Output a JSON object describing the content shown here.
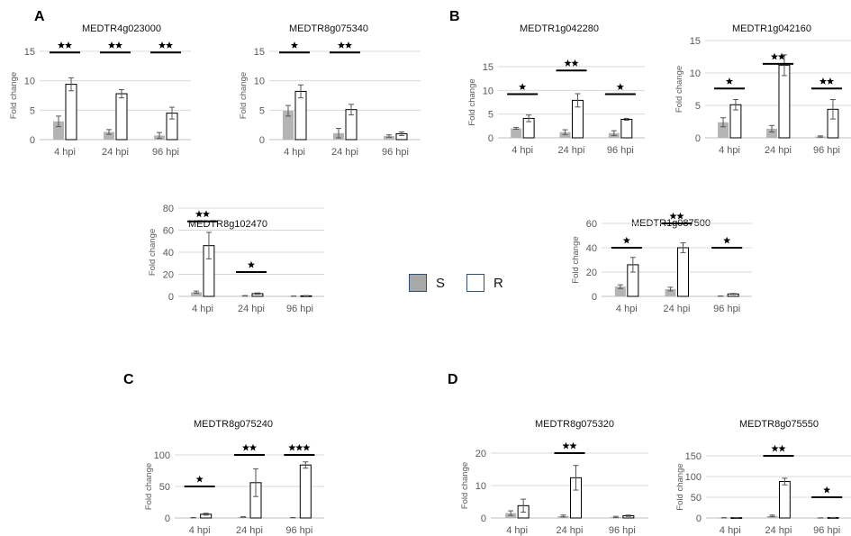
{
  "panels": {
    "a": "A",
    "b": "B",
    "c": "C",
    "d": "D"
  },
  "legend": {
    "s": "S",
    "r": "R"
  },
  "colors": {
    "s_bar": "#b4b4b4",
    "r_bar": "#ffffff",
    "grid": "#d9d9d9",
    "axis_text": "#595959",
    "sig": "#000000"
  },
  "chart_data": [
    {
      "id": "A1",
      "type": "bar",
      "title": "MEDTR4g023000",
      "ylabel": "Fold change",
      "ylim": [
        0,
        15
      ],
      "yticks": [
        0,
        5,
        10,
        15
      ],
      "categories": [
        "4 hpi",
        "24 hpi",
        "96 hpi"
      ],
      "series": [
        {
          "name": "S",
          "values": [
            3.1,
            1.3,
            0.7
          ],
          "errors": [
            0.9,
            0.4,
            0.5
          ]
        },
        {
          "name": "R",
          "values": [
            9.4,
            7.8,
            4.5
          ],
          "errors": [
            1.1,
            0.7,
            1.0
          ]
        }
      ],
      "significance": [
        "★★",
        "★★",
        "★★"
      ],
      "sig_levels": [
        14.8,
        14.8,
        14.8
      ]
    },
    {
      "id": "A2",
      "type": "bar",
      "title": "MEDTR8g075340",
      "ylabel": "Fold change",
      "ylim": [
        0,
        15
      ],
      "yticks": [
        0,
        5,
        10,
        15
      ],
      "categories": [
        "4 hpi",
        "24 hpi",
        "96 hpi"
      ],
      "series": [
        {
          "name": "S",
          "values": [
            4.9,
            1.1,
            0.6
          ],
          "errors": [
            0.9,
            0.8,
            0.2
          ]
        },
        {
          "name": "R",
          "values": [
            8.2,
            5.1,
            1.0
          ],
          "errors": [
            1.1,
            0.9,
            0.3
          ]
        }
      ],
      "significance": [
        "★",
        "★★",
        ""
      ],
      "sig_levels": [
        14.8,
        14.8,
        0
      ]
    },
    {
      "id": "B1",
      "type": "bar",
      "title": "MEDTR1g042280",
      "ylabel": "Fold change",
      "ylim": [
        0,
        15
      ],
      "yticks": [
        0,
        5,
        10,
        15
      ],
      "categories": [
        "4 hpi",
        "24 hpi",
        "96 hpi"
      ],
      "series": [
        {
          "name": "S",
          "values": [
            2.0,
            1.2,
            1.0
          ],
          "errors": [
            0.2,
            0.5,
            0.5
          ]
        },
        {
          "name": "R",
          "values": [
            4.1,
            7.9,
            3.9
          ],
          "errors": [
            0.7,
            1.4,
            0.2
          ]
        }
      ],
      "significance": [
        "★",
        "★★",
        "★"
      ],
      "sig_levels": [
        9.2,
        14.2,
        9.2
      ]
    },
    {
      "id": "B2",
      "type": "bar",
      "title": "MEDTR1g042160",
      "ylabel": "Fold change",
      "ylim": [
        0,
        15
      ],
      "yticks": [
        0,
        5,
        10,
        15
      ],
      "categories": [
        "4 hpi",
        "24 hpi",
        "96 hpi"
      ],
      "series": [
        {
          "name": "S",
          "values": [
            2.4,
            1.4,
            0.2
          ],
          "errors": [
            0.7,
            0.5,
            0.1
          ]
        },
        {
          "name": "R",
          "values": [
            5.1,
            11.2,
            4.4
          ],
          "errors": [
            0.8,
            1.6,
            1.5
          ]
        }
      ],
      "significance": [
        "★",
        "★★",
        "★★"
      ],
      "sig_levels": [
        7.6,
        11.4,
        7.6
      ]
    },
    {
      "id": "A3",
      "type": "bar",
      "title": "MEDTR8g102470",
      "ylabel": "Fold change",
      "ylim": [
        0,
        80
      ],
      "yticks": [
        0,
        20,
        40,
        60,
        80
      ],
      "categories": [
        "4 hpi",
        "24 hpi",
        "96 hpi"
      ],
      "series": [
        {
          "name": "S",
          "values": [
            3.8,
            0.5,
            0.2
          ],
          "errors": [
            1.0,
            0.2,
            0.1
          ]
        },
        {
          "name": "R",
          "values": [
            46,
            2.5,
            0.5
          ],
          "errors": [
            12,
            0.6,
            0.2
          ]
        }
      ],
      "significance": [
        "★★",
        "★",
        ""
      ],
      "sig_levels": [
        68,
        22,
        0
      ]
    },
    {
      "id": "B3",
      "type": "bar",
      "title": "MEDTR1g087500",
      "ylabel": "Fold change",
      "ylim": [
        0,
        60
      ],
      "yticks": [
        0,
        20,
        40,
        60
      ],
      "categories": [
        "4 hpi",
        "24 hpi",
        "96 hpi"
      ],
      "series": [
        {
          "name": "S",
          "values": [
            8,
            6,
            0.2
          ],
          "errors": [
            1.5,
            1.5,
            0.1
          ]
        },
        {
          "name": "R",
          "values": [
            26,
            40,
            2
          ],
          "errors": [
            6,
            4,
            0.4
          ]
        }
      ],
      "significance": [
        "★",
        "★★",
        "★"
      ],
      "sig_levels": [
        40,
        60,
        40
      ]
    },
    {
      "id": "C1",
      "type": "bar",
      "title": "MEDTR8g075240",
      "ylabel": "Fold change",
      "ylim": [
        0,
        100
      ],
      "yticks": [
        0,
        50,
        100
      ],
      "categories": [
        "4 hpi",
        "24 hpi",
        "96 hpi"
      ],
      "series": [
        {
          "name": "S",
          "values": [
            0.5,
            1.5,
            0.5
          ],
          "errors": [
            0.3,
            0.5,
            0.2
          ]
        },
        {
          "name": "R",
          "values": [
            6,
            56,
            84
          ],
          "errors": [
            1.5,
            22,
            5
          ]
        }
      ],
      "significance": [
        "★",
        "★★",
        "★★★"
      ],
      "sig_levels": [
        50,
        100,
        100
      ]
    },
    {
      "id": "D1",
      "type": "bar",
      "title": "MEDTR8g075320",
      "ylabel": "Fold change",
      "ylim": [
        0,
        20
      ],
      "yticks": [
        0,
        10,
        20
      ],
      "categories": [
        "4 hpi",
        "24 hpi",
        "96 hpi"
      ],
      "series": [
        {
          "name": "S",
          "values": [
            1.5,
            0.6,
            0.3
          ],
          "errors": [
            0.7,
            0.3,
            0.2
          ]
        },
        {
          "name": "R",
          "values": [
            3.8,
            12.4,
            0.7
          ],
          "errors": [
            2.0,
            3.8,
            0.2
          ]
        }
      ],
      "significance": [
        "",
        "★★",
        ""
      ],
      "sig_levels": [
        0,
        20,
        0
      ]
    },
    {
      "id": "D2",
      "type": "bar",
      "title": "MEDTR8g075550",
      "ylabel": "Fold change",
      "ylim": [
        0,
        150
      ],
      "yticks": [
        0,
        50,
        100,
        150
      ],
      "categories": [
        "4 hpi",
        "24 hpi",
        "96 hpi"
      ],
      "series": [
        {
          "name": "S",
          "values": [
            0.5,
            5,
            0.2
          ],
          "errors": [
            0.3,
            2,
            0.1
          ]
        },
        {
          "name": "R",
          "values": [
            0.8,
            88,
            1
          ],
          "errors": [
            0.3,
            8,
            0.3
          ]
        }
      ],
      "significance": [
        "",
        "★★",
        "★"
      ],
      "sig_levels": [
        0,
        150,
        50
      ]
    }
  ]
}
